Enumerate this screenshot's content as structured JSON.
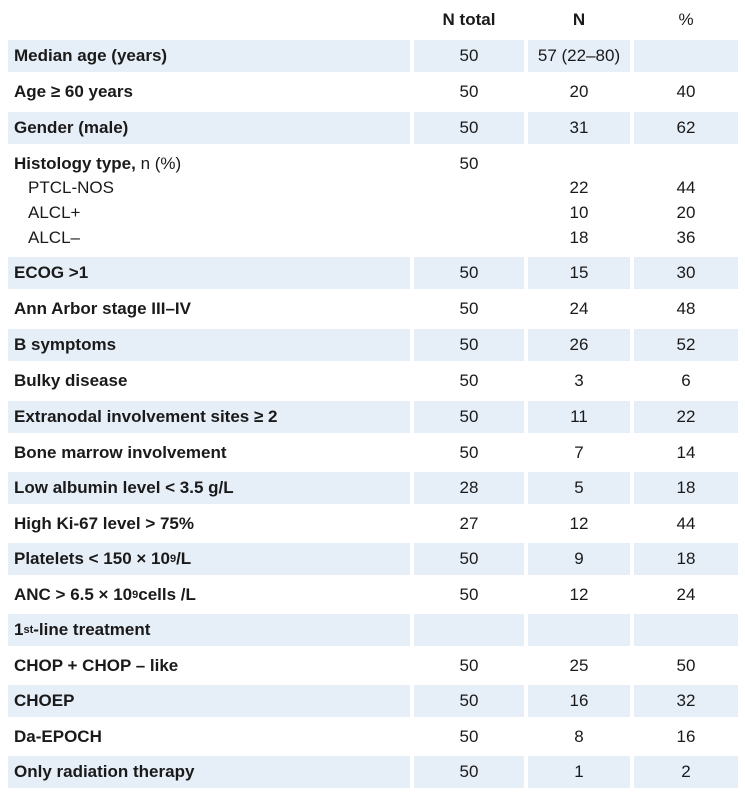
{
  "header": {
    "n_total": "N total",
    "n": "N",
    "pct": "%"
  },
  "rows": [
    {
      "label": "Median age (years)",
      "n_total": "50",
      "n": "57 (22–80)",
      "pct": "",
      "shade": true
    },
    {
      "label": "Age ≥ 60 years",
      "n_total": "50",
      "n": "20",
      "pct": "40",
      "shade": false
    },
    {
      "label": "Gender (male)",
      "n_total": "50",
      "n": "31",
      "pct": "62",
      "shade": true
    },
    {
      "label": "ECOG >1",
      "n_total": "50",
      "n": "15",
      "pct": "30",
      "shade": true
    },
    {
      "label": "Ann Arbor stage III–IV",
      "n_total": "50",
      "n": "24",
      "pct": "48",
      "shade": false
    },
    {
      "label": "B symptoms",
      "n_total": "50",
      "n": "26",
      "pct": "52",
      "shade": true
    },
    {
      "label": "Bulky disease",
      "n_total": "50",
      "n": "3",
      "pct": "6",
      "shade": false
    },
    {
      "label": "Extranodal involvement sites ≥ 2",
      "n_total": "50",
      "n": "11",
      "pct": "22",
      "shade": true
    },
    {
      "label": "Bone marrow involvement",
      "n_total": "50",
      "n": "7",
      "pct": "14",
      "shade": false
    },
    {
      "label": "Low albumin level < 3.5 g/L",
      "n_total": "28",
      "n": "5",
      "pct": "18",
      "shade": true
    },
    {
      "label": "High Ki-67 level > 75%",
      "n_total": "27",
      "n": "12",
      "pct": "44",
      "shade": false
    },
    {
      "label_pre": "Platelets < 150 × 10",
      "label_sup": "9",
      "label_post": "/L",
      "n_total": "50",
      "n": "9",
      "pct": "18",
      "shade": true
    },
    {
      "label_pre": "ANC > 6.5 × 10",
      "label_sup": "9",
      "label_post": " cells /L",
      "n_total": "50",
      "n": "12",
      "pct": "24",
      "shade": false
    },
    {
      "label_pre": "1",
      "label_sup": "st",
      "label_post": "-line treatment",
      "n_total": "",
      "n": "",
      "pct": "",
      "shade": true
    },
    {
      "label": "CHOP + CHOP – like",
      "n_total": "50",
      "n": "25",
      "pct": "50",
      "shade": false
    },
    {
      "label": "CHOEP",
      "n_total": "50",
      "n": "16",
      "pct": "32",
      "shade": true
    },
    {
      "label": "Da-EPOCH",
      "n_total": "50",
      "n": "8",
      "pct": "16",
      "shade": false
    },
    {
      "label": "Only radiation therapy",
      "n_total": "50",
      "n": "1",
      "pct": "2",
      "shade": true
    }
  ],
  "histology": {
    "label_bold": "Histology type, ",
    "label_normal": "n (%)",
    "n_total": "50",
    "subtypes": [
      {
        "label": "PTCL-NOS",
        "n": "22",
        "pct": "44"
      },
      {
        "label": "ALCL+",
        "n": "10",
        "pct": "20"
      },
      {
        "label": "ALCL–",
        "n": "18",
        "pct": "36"
      }
    ]
  }
}
